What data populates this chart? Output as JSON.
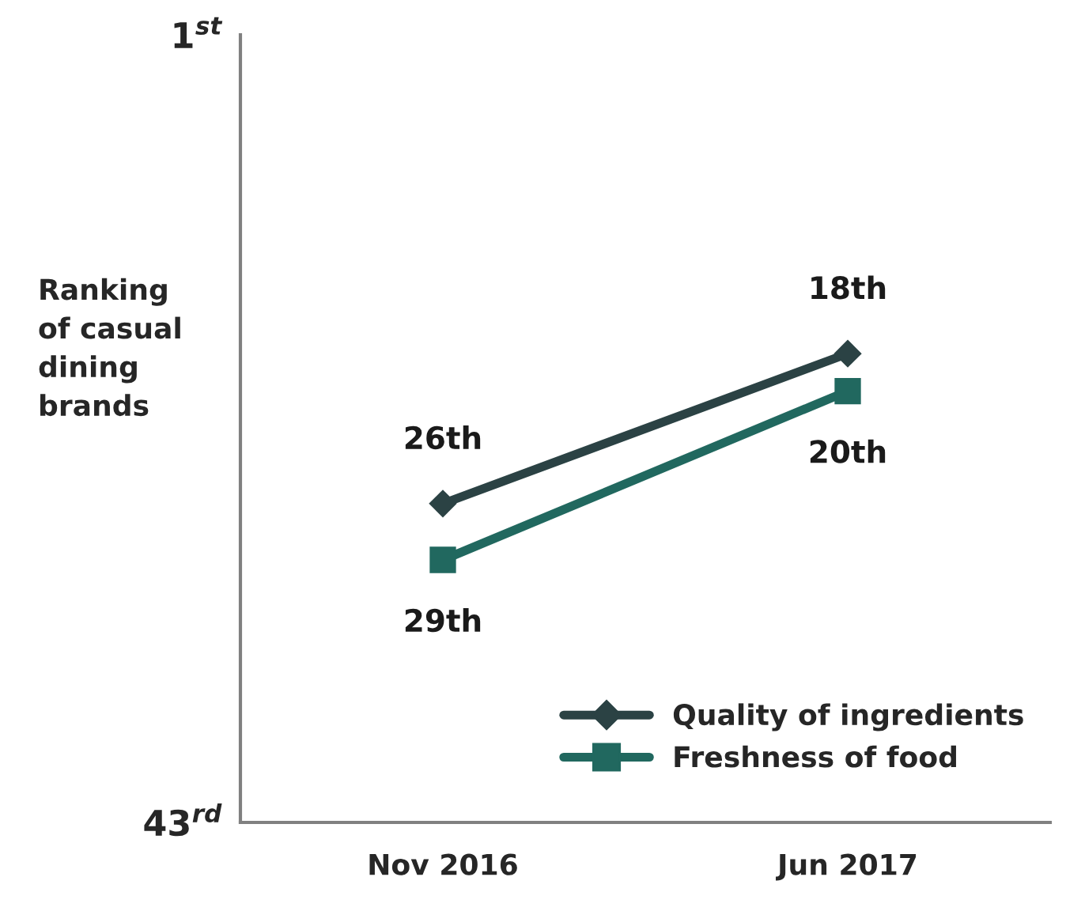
{
  "chart_data": {
    "type": "line",
    "ylabel": "Ranking\nof casual\ndining\nbrands",
    "categories": [
      "Nov 2016",
      "Jun 2017"
    ],
    "ylim": [
      43,
      1
    ],
    "yticks": [
      {
        "value": 1,
        "label": "1$^{st}$"
      },
      {
        "value": 43,
        "label": "43$^{rd}$"
      }
    ],
    "series": [
      {
        "name": "Quality of ingredients",
        "color": "#2b4244",
        "marker": "diamond",
        "values": [
          26,
          18
        ],
        "value_labels": [
          "26th",
          "18th"
        ]
      },
      {
        "name": "Freshness of food",
        "color": "#21685f",
        "marker": "square",
        "values": [
          29,
          20
        ],
        "value_labels": [
          "29th",
          "20th"
        ]
      }
    ],
    "legend": "bottom right",
    "grid": false
  }
}
